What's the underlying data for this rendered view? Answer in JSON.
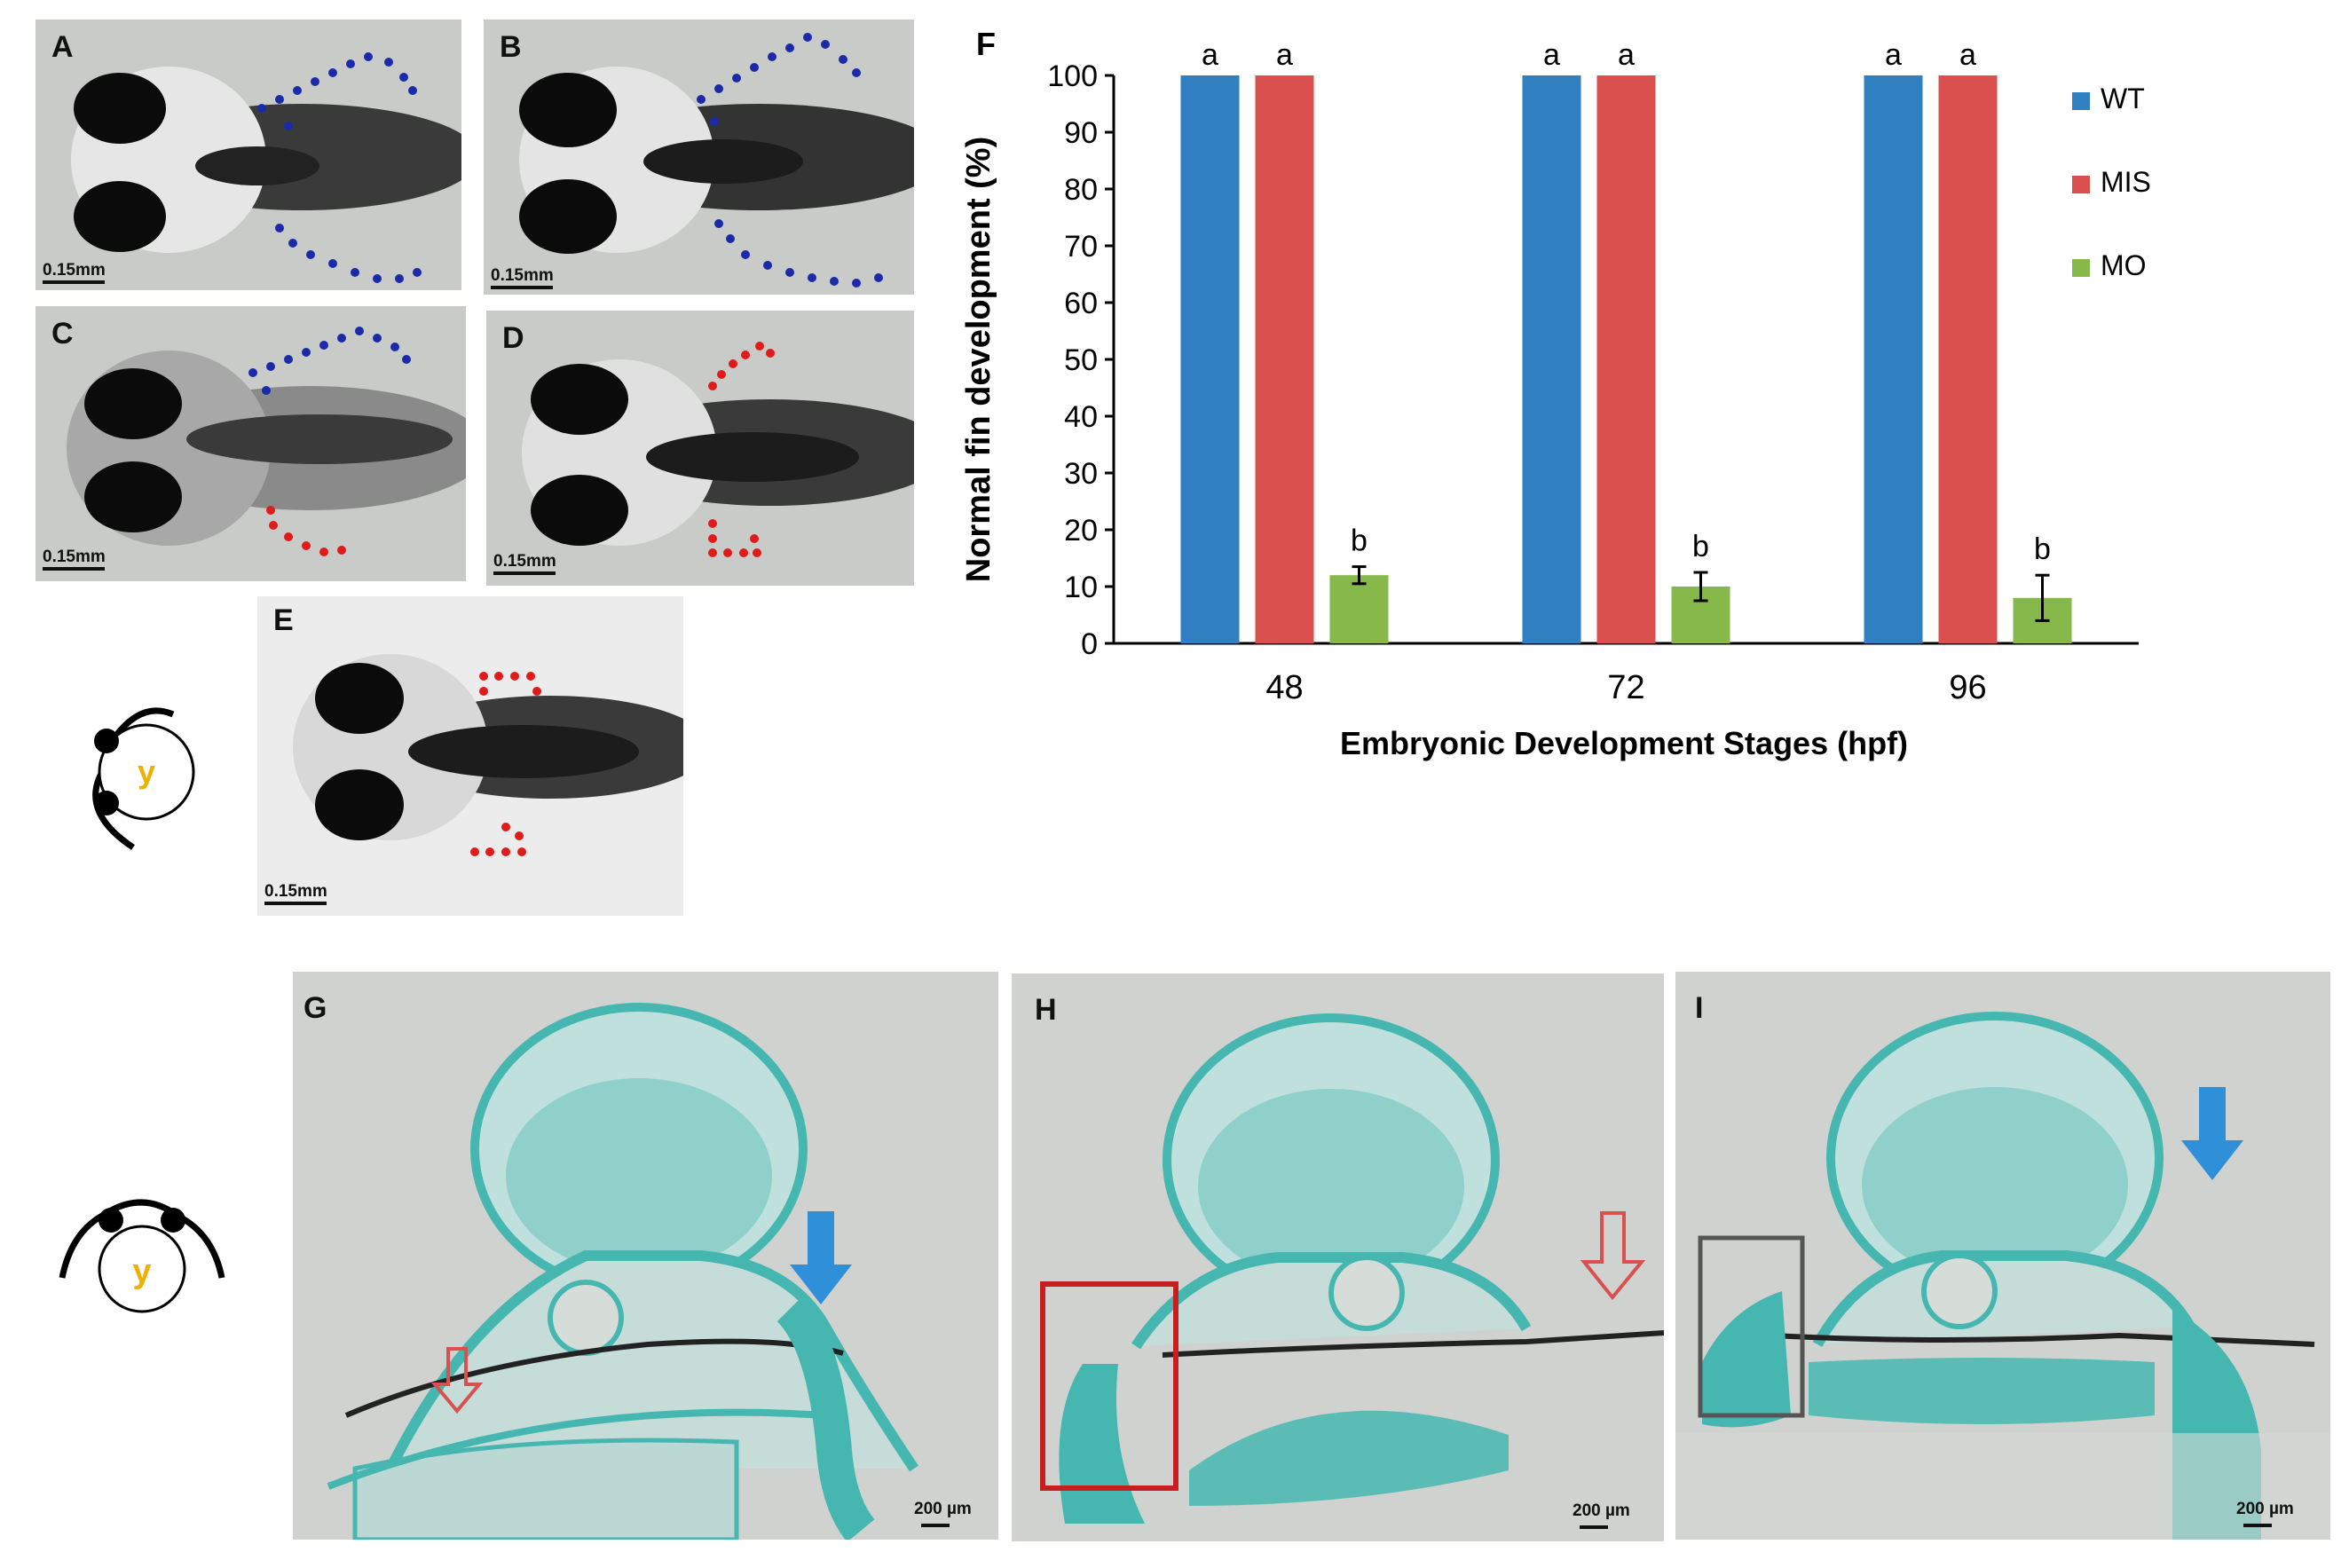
{
  "panels": {
    "A": {
      "label": "A",
      "scale": "0.15mm"
    },
    "B": {
      "label": "B",
      "scale": "0.15mm"
    },
    "C": {
      "label": "C",
      "scale": "0.15mm"
    },
    "D": {
      "label": "D",
      "scale": "0.15mm"
    },
    "E": {
      "label": "E",
      "scale": "0.15mm"
    },
    "G": {
      "label": "G",
      "scale": "200 µm"
    },
    "H": {
      "label": "H",
      "scale": "200 µm"
    },
    "I": {
      "label": "I",
      "scale": "200 µm"
    }
  },
  "schematic": {
    "yolk_label": "y"
  },
  "colors": {
    "wt": "#2f7fc1",
    "mis": "#d9504e",
    "mo": "#86b84a",
    "normal_fin_dots": "#1a2aa8",
    "abnormal_fin_dots": "#e01b1b",
    "tissue": "#46b7b0"
  },
  "chart_data": {
    "panel_label": "F",
    "type": "bar",
    "categories": [
      "48",
      "72",
      "96"
    ],
    "series": [
      {
        "name": "WT",
        "values": [
          100,
          100,
          100
        ],
        "letters": [
          "a",
          "a",
          "a"
        ]
      },
      {
        "name": "MIS",
        "values": [
          100,
          100,
          100
        ],
        "letters": [
          "a",
          "a",
          "a"
        ]
      },
      {
        "name": "MO",
        "values": [
          12,
          10,
          8
        ],
        "errors": [
          1.5,
          2.5,
          4
        ],
        "letters": [
          "b",
          "b",
          "b"
        ]
      }
    ],
    "xlabel": "Embryonic Development Stages (hpf)",
    "ylabel": "Normal fin development (%)",
    "ylim": [
      0,
      100
    ],
    "yticks": [
      "0",
      "10",
      "20",
      "30",
      "40",
      "50",
      "60",
      "70",
      "80",
      "90",
      "100"
    ],
    "legend_position": "right",
    "grid": false
  }
}
